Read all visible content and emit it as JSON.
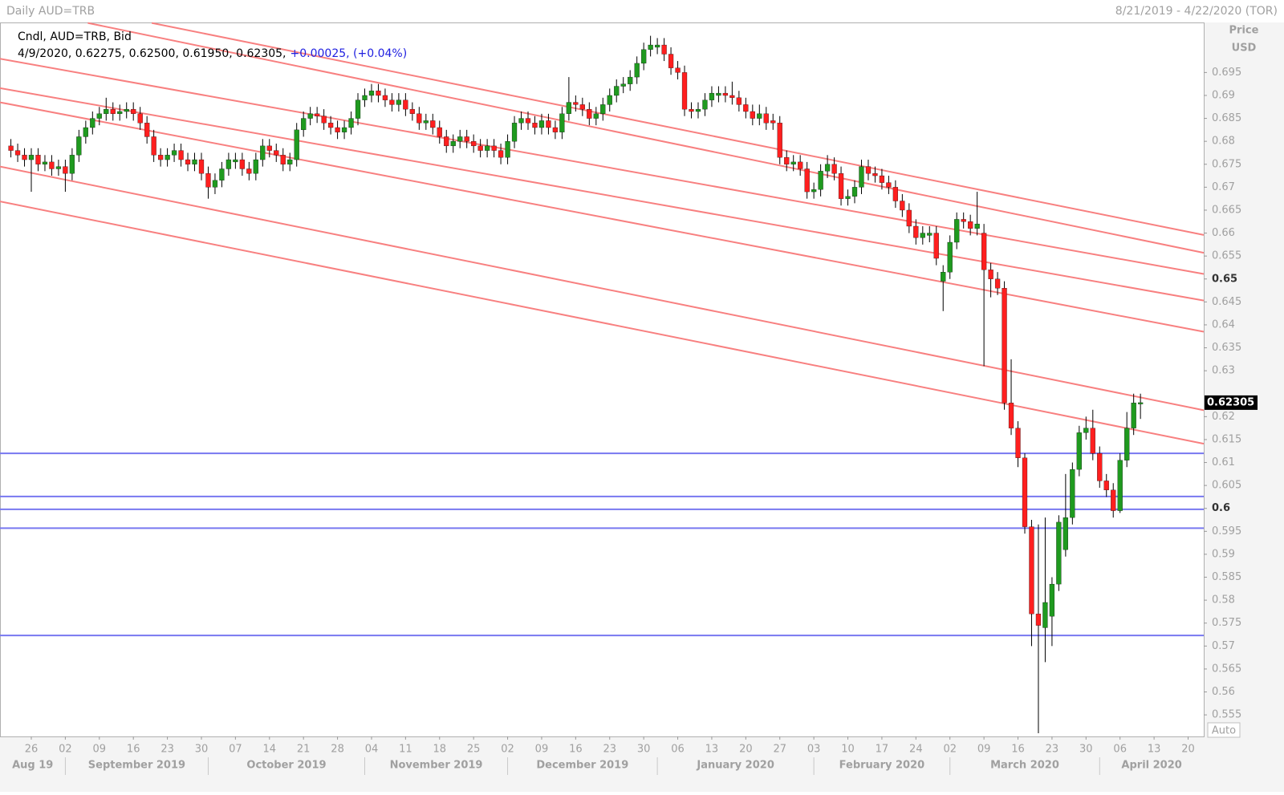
{
  "chart_data": {
    "type": "candlestick",
    "title": "Daily AUD=TRB",
    "date_range": "8/21/2019 - 4/22/2020 (TOR)",
    "legend_name": "Cndl, AUD=TRB, Bid",
    "legend_info": "4/9/2020, 0.62275, 0.62500, 0.61950, 0.62305,",
    "legend_change": "+0.00025, (+0.04%)",
    "y_title": "Price",
    "y_unit": "USD",
    "scale_mode": "Auto",
    "up_color": "#1f9a1f",
    "down_color": "#ff1f1f",
    "wick_color": "#000000",
    "level_color": "#7878f0",
    "trend_color": "#f88080",
    "xlim": [
      -1.6,
      175.3
    ],
    "ylim": [
      0.5503,
      0.7108
    ],
    "yticks": [
      0.555,
      0.56,
      0.565,
      0.57,
      0.575,
      0.58,
      0.585,
      0.59,
      0.595,
      0.6,
      0.605,
      0.61,
      0.615,
      0.62,
      0.63,
      0.635,
      0.64,
      0.645,
      0.65,
      0.655,
      0.66,
      0.665,
      0.67,
      0.675,
      0.68,
      0.685,
      0.69,
      0.695
    ],
    "xticks": [
      {
        "value": 3,
        "label": "26"
      },
      {
        "value": 8,
        "label": "02"
      },
      {
        "value": 13,
        "label": "09"
      },
      {
        "value": 18,
        "label": "16"
      },
      {
        "value": 23,
        "label": "23"
      },
      {
        "value": 28,
        "label": "30"
      },
      {
        "value": 33,
        "label": "07"
      },
      {
        "value": 38,
        "label": "14"
      },
      {
        "value": 43,
        "label": "21"
      },
      {
        "value": 48,
        "label": "28"
      },
      {
        "value": 53,
        "label": "04"
      },
      {
        "value": 58,
        "label": "11"
      },
      {
        "value": 63,
        "label": "18"
      },
      {
        "value": 68,
        "label": "25"
      },
      {
        "value": 73,
        "label": "02"
      },
      {
        "value": 78,
        "label": "09"
      },
      {
        "value": 83,
        "label": "16"
      },
      {
        "value": 88,
        "label": "23"
      },
      {
        "value": 93,
        "label": "30"
      },
      {
        "value": 98,
        "label": "06"
      },
      {
        "value": 103,
        "label": "13"
      },
      {
        "value": 108,
        "label": "20"
      },
      {
        "value": 113,
        "label": "27"
      },
      {
        "value": 118,
        "label": "03"
      },
      {
        "value": 123,
        "label": "10"
      },
      {
        "value": 128,
        "label": "17"
      },
      {
        "value": 133,
        "label": "24"
      },
      {
        "value": 138,
        "label": "02"
      },
      {
        "value": 143,
        "label": "09"
      },
      {
        "value": 148,
        "label": "16"
      },
      {
        "value": 153,
        "label": "23"
      },
      {
        "value": 158,
        "label": "30"
      },
      {
        "value": 163,
        "label": "06"
      },
      {
        "value": 168,
        "label": "13"
      },
      {
        "value": 173,
        "label": "20"
      }
    ],
    "months": [
      {
        "value": -1.6,
        "label": "Aug 19"
      },
      {
        "value": 8,
        "label": "September 2019"
      },
      {
        "value": 29,
        "label": "October 2019"
      },
      {
        "value": 52,
        "label": "November 2019"
      },
      {
        "value": 73,
        "label": "December 2019"
      },
      {
        "value": 95,
        "label": "January 2020"
      },
      {
        "value": 118,
        "label": "February 2020"
      },
      {
        "value": 138,
        "label": "March 2020"
      },
      {
        "value": 160,
        "label": "April 2020"
      }
    ],
    "levels": [
      0.612,
      0.6026,
      0.5998,
      0.5957,
      0.5723
    ],
    "trend_lines": [
      {
        "x": [
          20.7,
          175.3
        ],
        "y": [
          0.7058,
          0.6596
        ]
      },
      {
        "x": [
          11.3,
          175.3
        ],
        "y": [
          0.7058,
          0.6557
        ]
      },
      {
        "x": [
          -1.6,
          175.3
        ],
        "y": [
          0.698,
          0.6511
        ]
      },
      {
        "x": [
          -1.6,
          175.3
        ],
        "y": [
          0.6916,
          0.6453
        ]
      },
      {
        "x": [
          -1.6,
          175.3
        ],
        "y": [
          0.6885,
          0.6385
        ]
      },
      {
        "x": [
          -1.6,
          175.3
        ],
        "y": [
          0.6745,
          0.6214
        ]
      },
      {
        "x": [
          -1.6,
          175.3
        ],
        "y": [
          0.6669,
          0.6141
        ]
      }
    ],
    "open": [
      0.679,
      0.678,
      0.677,
      0.676,
      0.677,
      0.675,
      0.6755,
      0.674,
      0.6745,
      0.673,
      0.677,
      0.681,
      0.683,
      0.685,
      0.686,
      0.687,
      0.686,
      0.6865,
      0.687,
      0.686,
      0.684,
      0.681,
      0.677,
      0.676,
      0.677,
      0.678,
      0.676,
      0.675,
      0.676,
      0.673,
      0.67,
      0.6715,
      0.674,
      0.6755,
      0.676,
      0.674,
      0.673,
      0.676,
      0.679,
      0.678,
      0.677,
      0.675,
      0.676,
      0.6825,
      0.685,
      0.686,
      0.6855,
      0.684,
      0.683,
      0.682,
      0.683,
      0.685,
      0.689,
      0.69,
      0.691,
      0.69,
      0.689,
      0.688,
      0.689,
      0.687,
      0.686,
      0.684,
      0.6845,
      0.683,
      0.681,
      0.679,
      0.68,
      0.681,
      0.68,
      0.679,
      0.678,
      0.679,
      0.678,
      0.6765,
      0.68,
      0.684,
      0.685,
      0.684,
      0.683,
      0.6845,
      0.683,
      0.682,
      0.686,
      0.6885,
      0.688,
      0.687,
      0.685,
      0.686,
      0.688,
      0.69,
      0.692,
      0.6925,
      0.694,
      0.697,
      0.7,
      0.7005,
      0.701,
      0.699,
      0.696,
      0.695,
      0.687,
      0.6865,
      0.687,
      0.689,
      0.69,
      0.6905,
      0.69,
      0.6895,
      0.688,
      0.6865,
      0.685,
      0.686,
      0.6845,
      0.684,
      0.6765,
      0.675,
      0.6755,
      0.674,
      0.669,
      0.6695,
      0.6735,
      0.675,
      0.673,
      0.6675,
      0.668,
      0.67,
      0.6745,
      0.673,
      0.6725,
      0.671,
      0.67,
      0.667,
      0.665,
      0.6615,
      0.659,
      0.6595,
      0.66,
      0.6495,
      0.6515,
      0.658,
      0.663,
      0.6625,
      0.661,
      0.66,
      0.652,
      0.65,
      0.648,
      0.623,
      0.6175,
      0.611,
      0.596,
      0.577,
      0.574,
      0.5765,
      0.5835,
      0.591,
      0.598,
      0.6085,
      0.6165,
      0.6175,
      0.612,
      0.606,
      0.604,
      0.5995,
      0.6105,
      0.6175,
      0.62275
    ],
    "high": [
      0.6805,
      0.6795,
      0.6785,
      0.6785,
      0.6785,
      0.677,
      0.677,
      0.676,
      0.676,
      0.6785,
      0.6825,
      0.6845,
      0.6865,
      0.6875,
      0.6895,
      0.6885,
      0.688,
      0.6885,
      0.6885,
      0.6875,
      0.6855,
      0.6825,
      0.6785,
      0.6785,
      0.6795,
      0.6795,
      0.6775,
      0.6775,
      0.6775,
      0.6745,
      0.673,
      0.6755,
      0.6775,
      0.6775,
      0.6775,
      0.6755,
      0.6775,
      0.6805,
      0.6805,
      0.6795,
      0.6785,
      0.6775,
      0.684,
      0.6865,
      0.6875,
      0.6875,
      0.687,
      0.6855,
      0.6845,
      0.6845,
      0.6865,
      0.6905,
      0.6915,
      0.6925,
      0.6925,
      0.6915,
      0.6905,
      0.6905,
      0.6905,
      0.6885,
      0.6875,
      0.686,
      0.686,
      0.6845,
      0.6825,
      0.6815,
      0.6825,
      0.6825,
      0.6815,
      0.6805,
      0.6805,
      0.6805,
      0.6795,
      0.6815,
      0.6855,
      0.6865,
      0.6865,
      0.6855,
      0.686,
      0.686,
      0.6845,
      0.6875,
      0.694,
      0.69,
      0.6895,
      0.6885,
      0.6875,
      0.6895,
      0.6915,
      0.6935,
      0.694,
      0.6955,
      0.6985,
      0.7015,
      0.703,
      0.7025,
      0.7025,
      0.7005,
      0.6975,
      0.6965,
      0.6885,
      0.6885,
      0.6905,
      0.692,
      0.692,
      0.692,
      0.693,
      0.691,
      0.6895,
      0.688,
      0.688,
      0.6875,
      0.686,
      0.6855,
      0.678,
      0.677,
      0.677,
      0.6755,
      0.671,
      0.675,
      0.677,
      0.6765,
      0.6745,
      0.6695,
      0.6715,
      0.676,
      0.676,
      0.6745,
      0.674,
      0.6725,
      0.6715,
      0.6685,
      0.6665,
      0.663,
      0.6615,
      0.6615,
      0.6615,
      0.653,
      0.6595,
      0.6645,
      0.6645,
      0.664,
      0.669,
      0.662,
      0.6535,
      0.6515,
      0.6495,
      0.6325,
      0.619,
      0.612,
      0.5975,
      0.5965,
      0.598,
      0.585,
      0.5985,
      0.6075,
      0.61,
      0.618,
      0.62,
      0.6215,
      0.6135,
      0.6075,
      0.6055,
      0.612,
      0.621,
      0.625,
      0.625
    ],
    "low": [
      0.6765,
      0.6755,
      0.6745,
      0.669,
      0.6735,
      0.6735,
      0.6725,
      0.6725,
      0.669,
      0.6715,
      0.6755,
      0.6795,
      0.6815,
      0.6835,
      0.6845,
      0.6845,
      0.6845,
      0.685,
      0.6845,
      0.6825,
      0.6795,
      0.6755,
      0.6745,
      0.6745,
      0.6755,
      0.6745,
      0.6735,
      0.6735,
      0.6715,
      0.6675,
      0.6685,
      0.67,
      0.6725,
      0.674,
      0.6725,
      0.6715,
      0.6715,
      0.6745,
      0.6765,
      0.6755,
      0.6735,
      0.6735,
      0.6745,
      0.681,
      0.6835,
      0.684,
      0.6825,
      0.6815,
      0.6805,
      0.6805,
      0.6815,
      0.6835,
      0.6875,
      0.6885,
      0.6885,
      0.6875,
      0.6865,
      0.6865,
      0.6855,
      0.6845,
      0.6825,
      0.6825,
      0.6815,
      0.6795,
      0.6775,
      0.6775,
      0.6785,
      0.6785,
      0.6775,
      0.6765,
      0.6765,
      0.6765,
      0.675,
      0.675,
      0.6785,
      0.6825,
      0.6825,
      0.6815,
      0.6815,
      0.6815,
      0.6805,
      0.6805,
      0.6845,
      0.6865,
      0.6855,
      0.6835,
      0.6835,
      0.6845,
      0.6865,
      0.6885,
      0.6905,
      0.691,
      0.6925,
      0.6955,
      0.6985,
      0.699,
      0.6975,
      0.6945,
      0.6935,
      0.6855,
      0.685,
      0.685,
      0.6855,
      0.6875,
      0.6885,
      0.6885,
      0.688,
      0.6865,
      0.685,
      0.6835,
      0.6835,
      0.6825,
      0.6825,
      0.675,
      0.6735,
      0.6735,
      0.6725,
      0.6675,
      0.6675,
      0.668,
      0.672,
      0.6715,
      0.666,
      0.666,
      0.6665,
      0.6685,
      0.6715,
      0.671,
      0.6695,
      0.6685,
      0.6655,
      0.6635,
      0.66,
      0.6575,
      0.6575,
      0.658,
      0.653,
      0.643,
      0.65,
      0.6565,
      0.661,
      0.6595,
      0.6595,
      0.631,
      0.646,
      0.6465,
      0.6215,
      0.616,
      0.609,
      0.5945,
      0.57,
      0.551,
      0.5665,
      0.57,
      0.582,
      0.5895,
      0.5965,
      0.607,
      0.615,
      0.6105,
      0.6045,
      0.6025,
      0.598,
      0.599,
      0.609,
      0.616,
      0.6195
    ],
    "close": [
      0.678,
      0.677,
      0.676,
      0.677,
      0.675,
      0.6755,
      0.674,
      0.6745,
      0.673,
      0.677,
      0.681,
      0.683,
      0.685,
      0.686,
      0.687,
      0.686,
      0.6865,
      0.687,
      0.686,
      0.684,
      0.681,
      0.677,
      0.676,
      0.677,
      0.678,
      0.676,
      0.675,
      0.676,
      0.673,
      0.67,
      0.6715,
      0.674,
      0.676,
      0.676,
      0.674,
      0.673,
      0.676,
      0.679,
      0.678,
      0.677,
      0.675,
      0.676,
      0.6825,
      0.685,
      0.686,
      0.6855,
      0.684,
      0.683,
      0.682,
      0.683,
      0.685,
      0.689,
      0.69,
      0.691,
      0.69,
      0.689,
      0.688,
      0.689,
      0.687,
      0.686,
      0.684,
      0.6845,
      0.683,
      0.681,
      0.679,
      0.68,
      0.681,
      0.68,
      0.679,
      0.678,
      0.679,
      0.678,
      0.6765,
      0.68,
      0.684,
      0.685,
      0.684,
      0.683,
      0.6845,
      0.683,
      0.682,
      0.686,
      0.6885,
      0.688,
      0.687,
      0.685,
      0.686,
      0.688,
      0.69,
      0.692,
      0.6925,
      0.694,
      0.697,
      0.7,
      0.701,
      0.701,
      0.699,
      0.696,
      0.695,
      0.687,
      0.6865,
      0.687,
      0.689,
      0.6905,
      0.6905,
      0.69,
      0.6895,
      0.688,
      0.6865,
      0.685,
      0.686,
      0.684,
      0.684,
      0.6765,
      0.675,
      0.6755,
      0.674,
      0.669,
      0.6695,
      0.6735,
      0.675,
      0.673,
      0.6675,
      0.668,
      0.67,
      0.6745,
      0.673,
      0.6725,
      0.671,
      0.67,
      0.667,
      0.665,
      0.6615,
      0.659,
      0.66,
      0.66,
      0.6545,
      0.6515,
      0.658,
      0.663,
      0.6625,
      0.661,
      0.662,
      0.652,
      0.65,
      0.648,
      0.623,
      0.6175,
      0.611,
      0.596,
      0.577,
      0.5745,
      0.5795,
      0.5835,
      0.597,
      0.598,
      0.6085,
      0.6165,
      0.6175,
      0.612,
      0.606,
      0.604,
      0.5995,
      0.6105,
      0.6175,
      0.623,
      0.62305
    ]
  }
}
